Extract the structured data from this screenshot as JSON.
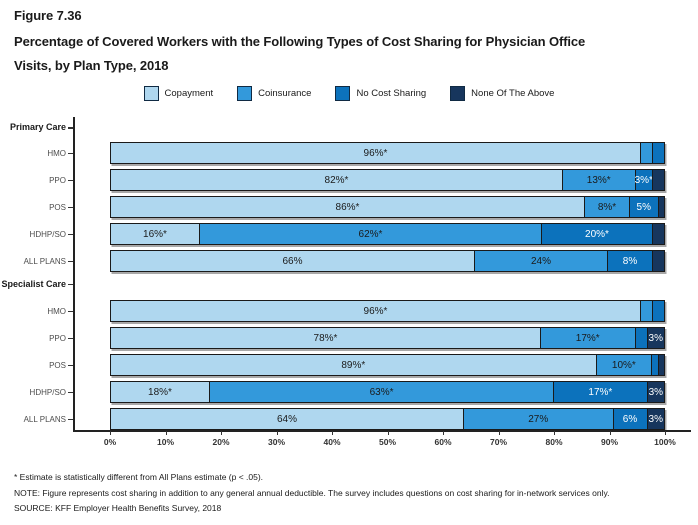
{
  "figure_label": "Figure 7.36",
  "title": "Percentage of Covered Workers with the Following Types of Cost Sharing for Physician Office Visits, by Plan Type, 2018",
  "legend": [
    {
      "label": "Copayment",
      "color": "#AFD7EF"
    },
    {
      "label": "Coinsurance",
      "color": "#3399DB"
    },
    {
      "label": "No Cost Sharing",
      "color": "#0C72BC"
    },
    {
      "label": "None Of The Above",
      "color": "#17365D"
    }
  ],
  "chart_data": {
    "type": "bar",
    "orientation": "horizontal",
    "stacked": true,
    "value_unit": "percent",
    "xlim": [
      0,
      100
    ],
    "x_ticks": [
      "0%",
      "10%",
      "20%",
      "30%",
      "40%",
      "50%",
      "60%",
      "70%",
      "80%",
      "90%",
      "100%"
    ],
    "series": [
      {
        "name": "Copayment",
        "color": "#AFD7EF"
      },
      {
        "name": "Coinsurance",
        "color": "#3399DB"
      },
      {
        "name": "No Cost Sharing",
        "color": "#0C72BC"
      },
      {
        "name": "None Of The Above",
        "color": "#17365D"
      }
    ],
    "groups": [
      {
        "section": "Primary Care",
        "rows": [
          {
            "plan": "HMO",
            "values": [
              96,
              2,
              2,
              0
            ],
            "labels": [
              "96%*",
              "",
              "",
              ""
            ]
          },
          {
            "plan": "PPO",
            "values": [
              82,
              13,
              3,
              2
            ],
            "labels": [
              "82%*",
              "13%*",
              "3%*",
              ""
            ]
          },
          {
            "plan": "POS",
            "values": [
              86,
              8,
              5,
              1
            ],
            "labels": [
              "86%*",
              "8%*",
              "5%",
              ""
            ]
          },
          {
            "plan": "HDHP/SO",
            "values": [
              16,
              62,
              20,
              2
            ],
            "labels": [
              "16%*",
              "62%*",
              "20%*",
              ""
            ]
          },
          {
            "plan": "ALL PLANS",
            "values": [
              66,
              24,
              8,
              2
            ],
            "labels": [
              "66%",
              "24%",
              "8%",
              ""
            ]
          }
        ]
      },
      {
        "section": "Specialist Care",
        "rows": [
          {
            "plan": "HMO",
            "values": [
              96,
              2,
              2,
              0
            ],
            "labels": [
              "96%*",
              "",
              "",
              ""
            ]
          },
          {
            "plan": "PPO",
            "values": [
              78,
              17,
              2,
              3
            ],
            "labels": [
              "78%*",
              "17%*",
              "",
              "3%"
            ]
          },
          {
            "plan": "POS",
            "values": [
              89,
              10,
              1,
              1
            ],
            "labels": [
              "89%*",
              "10%*",
              "",
              ""
            ]
          },
          {
            "plan": "HDHP/SO",
            "values": [
              18,
              63,
              17,
              3
            ],
            "labels": [
              "18%*",
              "63%*",
              "17%*",
              "3%"
            ]
          },
          {
            "plan": "ALL PLANS",
            "values": [
              64,
              27,
              6,
              3
            ],
            "labels": [
              "64%",
              "27%",
              "6%",
              "3%"
            ]
          }
        ]
      }
    ]
  },
  "footnotes": [
    "* Estimate is statistically different from All Plans estimate (p < .05).",
    "NOTE: Figure represents cost sharing in addition to any general annual deductible. The survey includes questions on cost sharing for in-network services only.",
    "SOURCE: KFF Employer Health Benefits Survey, 2018"
  ]
}
